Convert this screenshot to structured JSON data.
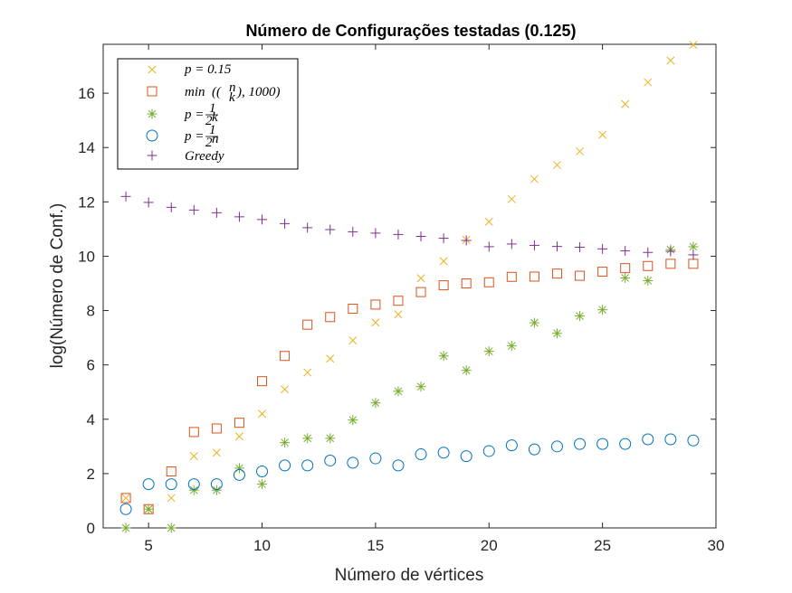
{
  "chart_data": {
    "type": "scatter",
    "title": "Número de Configurações testadas (0.125)",
    "xlabel": "Número de vértices",
    "ylabel": "log(Número de Conf.)",
    "xlim": [
      3,
      30
    ],
    "ylim": [
      0,
      17.8
    ],
    "xticks": [
      5,
      10,
      15,
      20,
      25,
      30
    ],
    "yticks": [
      0,
      2,
      4,
      6,
      8,
      10,
      12,
      14,
      16
    ],
    "grid": false,
    "legend_position": "top-left",
    "series": [
      {
        "name": "p = 0.15",
        "marker": "x",
        "color": "#EDB120",
        "x": [
          4,
          5,
          6,
          7,
          8,
          9,
          10,
          11,
          12,
          13,
          14,
          15,
          16,
          17,
          18,
          19,
          20,
          21,
          22,
          23,
          24,
          25,
          26,
          27,
          28,
          29
        ],
        "y": [
          1.1,
          0.69,
          1.1,
          2.64,
          2.77,
          3.37,
          4.2,
          5.1,
          5.72,
          6.23,
          6.9,
          7.56,
          7.86,
          9.19,
          9.82,
          10.6,
          11.27,
          12.1,
          12.84,
          13.36,
          13.86,
          14.47,
          15.6,
          16.4,
          17.2,
          17.78
        ]
      },
      {
        "name": "min((n k), 1000)",
        "marker": "square",
        "color": "#D95319",
        "x": [
          4,
          5,
          6,
          7,
          8,
          9,
          10,
          11,
          12,
          13,
          14,
          15,
          16,
          17,
          18,
          19,
          20,
          21,
          22,
          23,
          24,
          25,
          26,
          27,
          28,
          29
        ],
        "y": [
          1.1,
          0.69,
          2.08,
          3.53,
          3.66,
          3.87,
          5.4,
          6.33,
          7.48,
          7.76,
          8.07,
          8.22,
          8.36,
          8.68,
          8.93,
          9.0,
          9.04,
          9.24,
          9.25,
          9.36,
          9.28,
          9.43,
          9.56,
          9.64,
          9.72,
          9.72
        ]
      },
      {
        "name": "p = 1/2^k",
        "marker": "asterisk",
        "color": "#77AC30",
        "x": [
          4,
          5,
          6,
          7,
          8,
          9,
          10,
          11,
          12,
          13,
          14,
          15,
          16,
          17,
          18,
          19,
          20,
          21,
          22,
          23,
          24,
          25,
          26,
          27,
          28,
          29
        ],
        "y": [
          0,
          0.69,
          0,
          1.39,
          1.39,
          2.2,
          1.61,
          3.14,
          3.3,
          3.3,
          3.97,
          4.6,
          5.03,
          5.2,
          6.33,
          5.8,
          6.5,
          6.7,
          7.55,
          7.16,
          7.8,
          8.03,
          9.2,
          9.1,
          10.24,
          10.35
        ]
      },
      {
        "name": "p = 1/2^n",
        "marker": "circle",
        "color": "#0072BD",
        "x": [
          4,
          5,
          6,
          7,
          8,
          9,
          10,
          11,
          12,
          13,
          14,
          15,
          16,
          17,
          18,
          19,
          20,
          21,
          22,
          23,
          24,
          25,
          26,
          27,
          28,
          29
        ],
        "y": [
          0.69,
          1.61,
          1.61,
          1.61,
          1.61,
          1.95,
          2.08,
          2.3,
          2.3,
          2.48,
          2.4,
          2.56,
          2.3,
          2.71,
          2.77,
          2.64,
          2.83,
          3.04,
          2.89,
          3.0,
          3.09,
          3.09,
          3.09,
          3.26,
          3.26,
          3.22
        ]
      },
      {
        "name": "Greedy",
        "marker": "plus",
        "color": "#7E2F8E",
        "x": [
          4,
          5,
          6,
          7,
          8,
          9,
          10,
          11,
          12,
          13,
          14,
          15,
          16,
          17,
          18,
          19,
          20,
          21,
          22,
          23,
          24,
          25,
          26,
          27,
          28,
          29
        ],
        "y": [
          12.2,
          11.98,
          11.8,
          11.7,
          11.6,
          11.45,
          11.35,
          11.2,
          11.05,
          10.98,
          10.9,
          10.85,
          10.8,
          10.73,
          10.66,
          10.58,
          10.35,
          10.45,
          10.4,
          10.36,
          10.33,
          10.27,
          10.2,
          10.14,
          10.18,
          10.05
        ]
      }
    ]
  }
}
